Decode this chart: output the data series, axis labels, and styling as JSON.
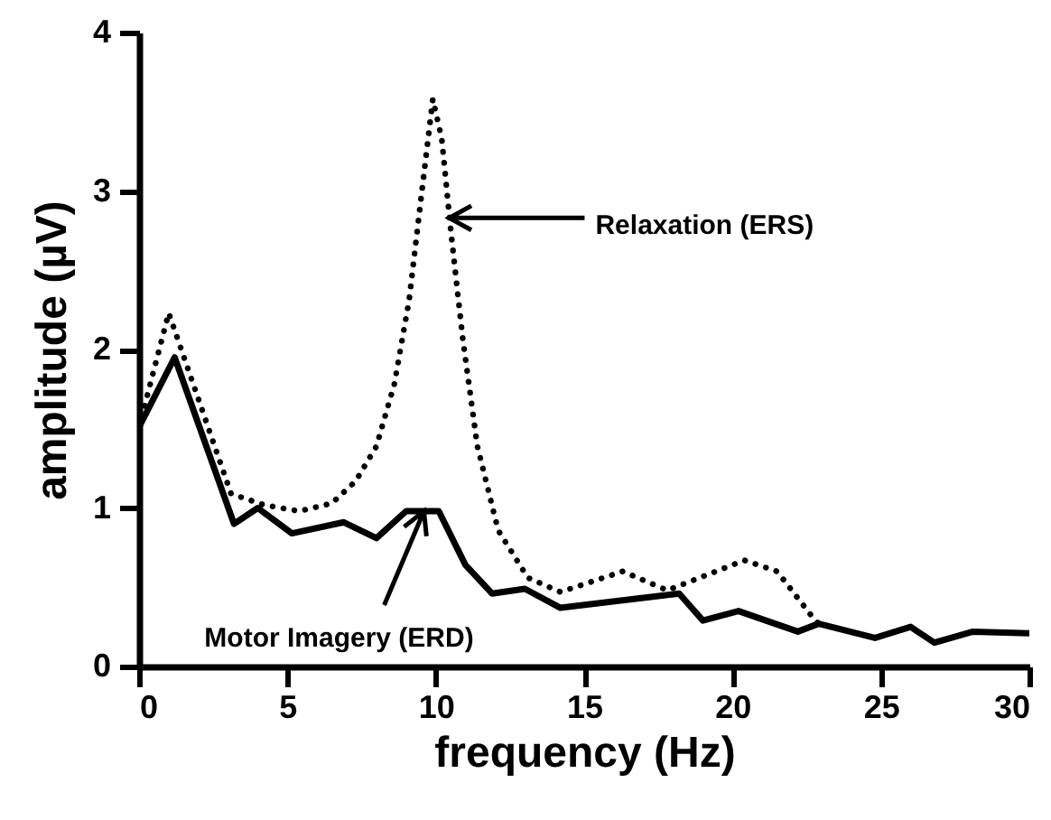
{
  "chart_data": {
    "type": "line",
    "xlabel": "frequency (Hz)",
    "ylabel": "amplitude (µV)",
    "xlim": [
      0,
      30
    ],
    "xticks": [
      0,
      5,
      10,
      15,
      20,
      25,
      30
    ],
    "ylim": [
      0,
      4
    ],
    "yticks": [
      0,
      1,
      2,
      3,
      4
    ],
    "grid": false,
    "marker": "none",
    "series": [
      {
        "color": "#000000",
        "line_style": "dotted",
        "x": [
          0,
          1.0,
          3.1,
          4.2,
          5.4,
          6.5,
          7.3,
          8.0,
          8.6,
          9.1,
          9.5,
          9.9,
          10.2,
          10.5,
          10.9,
          11.4,
          12.1,
          13.1,
          14.2,
          16.3,
          17.8,
          20.4,
          21.5,
          22.7,
          22.9
        ],
        "values": [
          1.51,
          2.23,
          1.09,
          1.02,
          0.98,
          1.03,
          1.17,
          1.39,
          1.78,
          2.31,
          2.95,
          3.58,
          3.33,
          2.76,
          2.08,
          1.39,
          0.86,
          0.56,
          0.47,
          0.6,
          0.48,
          0.67,
          0.6,
          0.31,
          0.27
        ]
      },
      {
        "color": "#000000",
        "line_style": "solid",
        "x": [
          0,
          1.2,
          3.2,
          4.0,
          5.15,
          6.9,
          8.0,
          9.0,
          10.1,
          11.0,
          11.9,
          13.0,
          14.2,
          18.2,
          19.0,
          20.2,
          22.2,
          22.9,
          24.8,
          26.0,
          26.8,
          28.1,
          30
        ],
        "values": [
          1.51,
          1.95,
          0.9,
          1.0,
          0.84,
          0.91,
          0.81,
          0.98,
          0.98,
          0.64,
          0.46,
          0.49,
          0.37,
          0.46,
          0.29,
          0.35,
          0.22,
          0.27,
          0.18,
          0.25,
          0.15,
          0.22,
          0.21
        ]
      }
    ],
    "annotations": [
      {
        "text": "Relaxation (ERS)",
        "x": 10.45,
        "y": 2.83
      },
      {
        "text": "Motor Imagery (ERD)",
        "x": 9.6,
        "y": 0.98
      }
    ]
  }
}
